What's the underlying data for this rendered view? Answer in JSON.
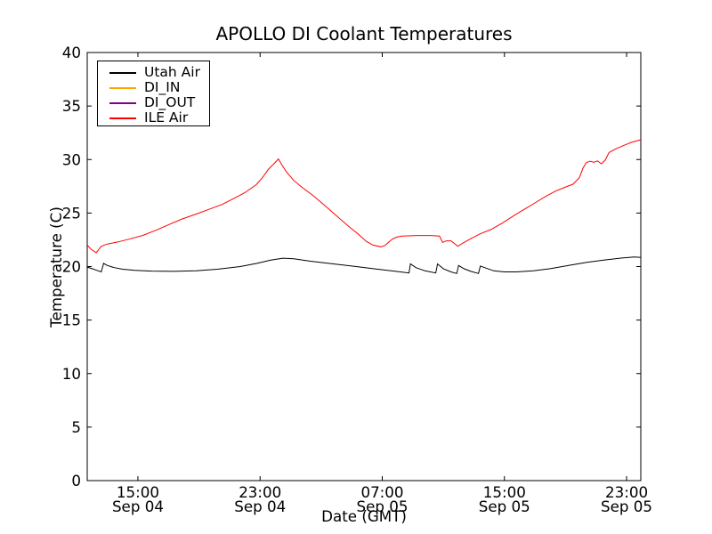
{
  "chart_data": {
    "type": "line",
    "title": "APOLLO DI Coolant Temperatures",
    "xlabel": "Date (GMT)",
    "ylabel": "Temperature (C)",
    "x_unit": "hours since Sep 04 00:00 GMT",
    "xlim": [
      11.68,
      47.93
    ],
    "ylim": [
      0,
      40
    ],
    "grid": false,
    "legend_position": "upper left",
    "x_ticks": [
      {
        "hour": 15,
        "time": "15:00",
        "date": "Sep 04"
      },
      {
        "hour": 23,
        "time": "23:00",
        "date": "Sep 04"
      },
      {
        "hour": 31,
        "time": "07:00",
        "date": "Sep 05"
      },
      {
        "hour": 39,
        "time": "15:00",
        "date": "Sep 05"
      },
      {
        "hour": 47,
        "time": "23:00",
        "date": "Sep 05"
      }
    ],
    "y_ticks": [
      0,
      5,
      10,
      15,
      20,
      25,
      30,
      35,
      40
    ],
    "series": [
      {
        "name": "Utah Air",
        "color": "#000000",
        "points": [
          [
            11.68,
            19.95
          ],
          [
            12.0,
            19.8
          ],
          [
            12.3,
            19.65
          ],
          [
            12.6,
            19.5
          ],
          [
            12.75,
            20.3
          ],
          [
            13.0,
            20.1
          ],
          [
            13.45,
            19.9
          ],
          [
            14.0,
            19.75
          ],
          [
            14.8,
            19.65
          ],
          [
            15.9,
            19.58
          ],
          [
            17.3,
            19.55
          ],
          [
            18.8,
            19.6
          ],
          [
            20.2,
            19.75
          ],
          [
            21.7,
            20.0
          ],
          [
            22.8,
            20.3
          ],
          [
            23.7,
            20.6
          ],
          [
            24.5,
            20.78
          ],
          [
            25.2,
            20.72
          ],
          [
            26.3,
            20.5
          ],
          [
            27.8,
            20.25
          ],
          [
            29.3,
            20.0
          ],
          [
            30.7,
            19.75
          ],
          [
            31.9,
            19.55
          ],
          [
            32.75,
            19.4
          ],
          [
            32.85,
            20.25
          ],
          [
            33.2,
            19.9
          ],
          [
            33.8,
            19.6
          ],
          [
            34.5,
            19.4
          ],
          [
            34.62,
            20.25
          ],
          [
            35.0,
            19.8
          ],
          [
            35.5,
            19.5
          ],
          [
            35.88,
            19.35
          ],
          [
            36.0,
            20.1
          ],
          [
            36.35,
            19.8
          ],
          [
            36.8,
            19.55
          ],
          [
            37.3,
            19.35
          ],
          [
            37.42,
            20.05
          ],
          [
            37.7,
            19.9
          ],
          [
            38.3,
            19.6
          ],
          [
            39.0,
            19.5
          ],
          [
            39.8,
            19.5
          ],
          [
            40.9,
            19.6
          ],
          [
            42.0,
            19.8
          ],
          [
            43.2,
            20.1
          ],
          [
            44.4,
            20.4
          ],
          [
            45.5,
            20.6
          ],
          [
            46.7,
            20.8
          ],
          [
            47.5,
            20.9
          ],
          [
            47.93,
            20.85
          ]
        ]
      },
      {
        "name": "DI_IN",
        "color": "#ffa500",
        "points": []
      },
      {
        "name": "DI_OUT",
        "color": "#800080",
        "points": []
      },
      {
        "name": "ILE Air",
        "color": "#ff0000",
        "points": [
          [
            11.68,
            22.0
          ],
          [
            11.95,
            21.6
          ],
          [
            12.27,
            21.3
          ],
          [
            12.6,
            21.9
          ],
          [
            13.0,
            22.1
          ],
          [
            13.7,
            22.3
          ],
          [
            14.4,
            22.55
          ],
          [
            15.3,
            22.9
          ],
          [
            16.2,
            23.4
          ],
          [
            17.0,
            23.9
          ],
          [
            17.9,
            24.45
          ],
          [
            18.8,
            24.9
          ],
          [
            19.65,
            25.35
          ],
          [
            20.5,
            25.8
          ],
          [
            21.2,
            26.3
          ],
          [
            22.0,
            26.9
          ],
          [
            22.75,
            27.65
          ],
          [
            23.15,
            28.3
          ],
          [
            23.55,
            29.1
          ],
          [
            23.9,
            29.6
          ],
          [
            24.2,
            30.05
          ],
          [
            24.45,
            29.45
          ],
          [
            24.75,
            28.8
          ],
          [
            25.2,
            28.05
          ],
          [
            25.75,
            27.4
          ],
          [
            26.45,
            26.65
          ],
          [
            27.2,
            25.75
          ],
          [
            28.0,
            24.75
          ],
          [
            28.8,
            23.75
          ],
          [
            29.45,
            23.0
          ],
          [
            29.95,
            22.35
          ],
          [
            30.4,
            22.0
          ],
          [
            30.9,
            21.85
          ],
          [
            31.15,
            21.95
          ],
          [
            31.4,
            22.25
          ],
          [
            31.65,
            22.55
          ],
          [
            31.95,
            22.75
          ],
          [
            32.3,
            22.85
          ],
          [
            33.3,
            22.9
          ],
          [
            34.2,
            22.9
          ],
          [
            34.75,
            22.85
          ],
          [
            34.95,
            22.25
          ],
          [
            35.2,
            22.4
          ],
          [
            35.5,
            22.4
          ],
          [
            35.95,
            21.9
          ],
          [
            36.35,
            22.25
          ],
          [
            36.8,
            22.6
          ],
          [
            37.4,
            23.05
          ],
          [
            38.1,
            23.45
          ],
          [
            38.85,
            24.05
          ],
          [
            39.6,
            24.75
          ],
          [
            40.3,
            25.35
          ],
          [
            41.0,
            25.95
          ],
          [
            41.7,
            26.55
          ],
          [
            42.35,
            27.05
          ],
          [
            42.95,
            27.4
          ],
          [
            43.5,
            27.7
          ],
          [
            43.9,
            28.3
          ],
          [
            44.15,
            29.2
          ],
          [
            44.35,
            29.7
          ],
          [
            44.6,
            29.85
          ],
          [
            44.85,
            29.75
          ],
          [
            45.1,
            29.87
          ],
          [
            45.35,
            29.6
          ],
          [
            45.6,
            29.95
          ],
          [
            45.85,
            30.65
          ],
          [
            46.3,
            31.0
          ],
          [
            46.8,
            31.3
          ],
          [
            47.3,
            31.6
          ],
          [
            47.93,
            31.85
          ]
        ]
      }
    ]
  }
}
